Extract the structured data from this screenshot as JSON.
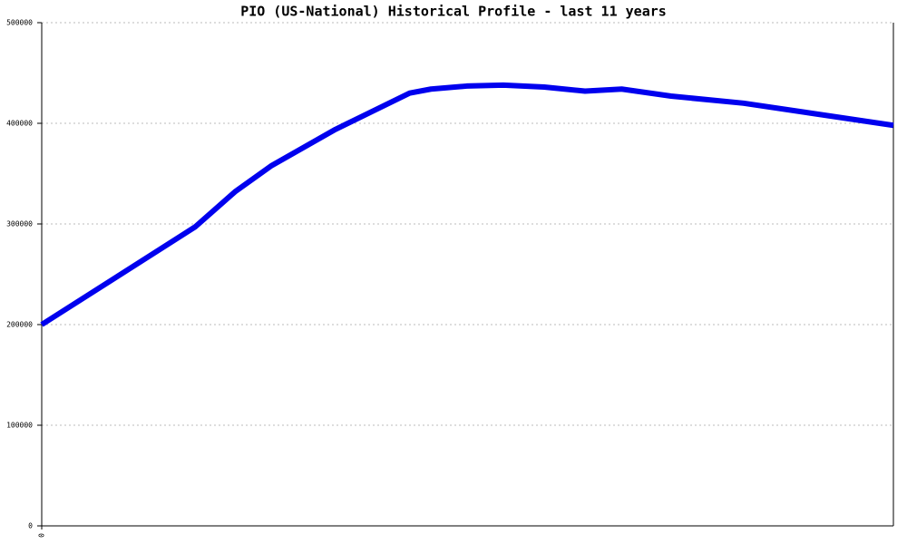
{
  "chart_data": {
    "type": "line",
    "title": "PIO (US-National) Historical Profile - last 11 years",
    "x": [
      0,
      18,
      22.7,
      27,
      34.5,
      43.2,
      45.7,
      49.9,
      54.2,
      59,
      63.8,
      68.1,
      73.9,
      82.4,
      100
    ],
    "series": [
      {
        "color": "#0000ee",
        "values": [
          200000,
          297000,
          332000,
          358000,
          394000,
          430000,
          434000,
          437000,
          438000,
          436000,
          432000,
          434000,
          427000,
          420000,
          398000
        ]
      }
    ],
    "xlim": [
      0,
      100
    ],
    "xticks": [
      0
    ],
    "ylim": [
      0,
      500000
    ],
    "yticks": [
      0,
      100000,
      200000,
      300000,
      400000,
      500000
    ],
    "grid": true
  }
}
